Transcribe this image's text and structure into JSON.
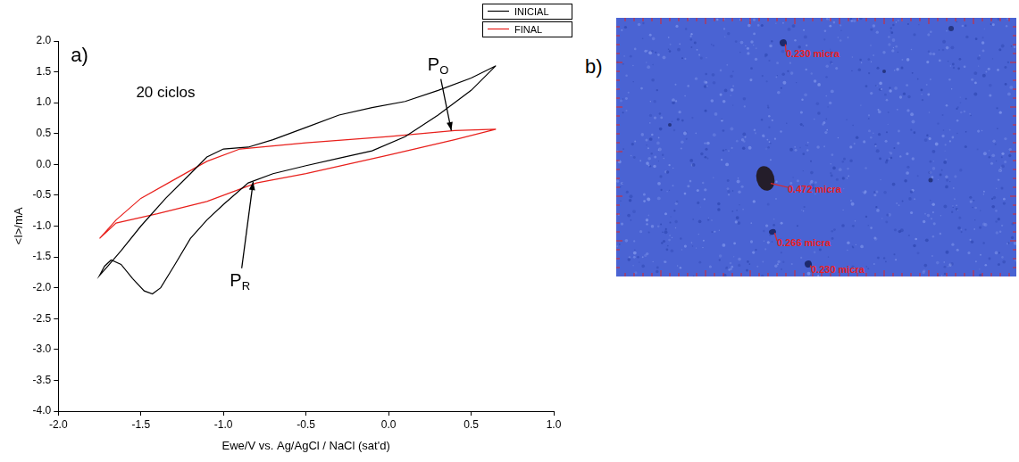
{
  "chart_data": {
    "type": "line",
    "panel_label": "a)",
    "x_label": "Ewe/V vs. Ag/AgCl / NaCl (sat'd)",
    "y_label": "<I>/mA",
    "xlim": [
      -2,
      1
    ],
    "xticks": [
      {
        "value": -2,
        "label": "-2.0"
      },
      {
        "value": -1.5,
        "label": "-1.5"
      },
      {
        "value": -1,
        "label": "-1.0"
      },
      {
        "value": -0.5,
        "label": "-0.5"
      },
      {
        "value": 0,
        "label": "0.0"
      },
      {
        "value": 0.5,
        "label": "0.5"
      },
      {
        "value": 1,
        "label": "1.0"
      }
    ],
    "ylim": [
      -4,
      2
    ],
    "yticks": [
      {
        "value": -4,
        "label": "-4.0"
      },
      {
        "value": -3.5,
        "label": "-3.5"
      },
      {
        "value": -3,
        "label": "-3.0"
      },
      {
        "value": -2.5,
        "label": "-2.5"
      },
      {
        "value": -2,
        "label": "-2.0"
      },
      {
        "value": -1.5,
        "label": "-1.5"
      },
      {
        "value": -1,
        "label": "-1.0"
      },
      {
        "value": -0.5,
        "label": "-0.5"
      },
      {
        "value": 0,
        "label": "0.0"
      },
      {
        "value": 0.5,
        "label": "0.5"
      },
      {
        "value": 1,
        "label": "1.0"
      },
      {
        "value": 1.5,
        "label": "1.5"
      },
      {
        "value": 2,
        "label": "2.0"
      }
    ],
    "grid": false,
    "legend": "upper right",
    "series": [
      {
        "name": "INICIAL",
        "color": "#000000",
        "x": [
          0.65,
          0.5,
          0.3,
          0.1,
          -0.1,
          -0.3,
          -0.5,
          -0.7,
          -0.85,
          -1.0,
          -1.1,
          -1.2,
          -1.35,
          -1.5,
          -1.62,
          -1.7,
          -1.75,
          -1.72,
          -1.68,
          -1.62,
          -1.55,
          -1.48,
          -1.43,
          -1.38,
          -1.3,
          -1.2,
          -1.1,
          -1.0,
          -0.85,
          -0.7,
          -0.5,
          -0.3,
          -0.1,
          0.1,
          0.3,
          0.5,
          0.65
        ],
        "values": [
          1.6,
          1.4,
          1.2,
          1.02,
          0.92,
          0.8,
          0.6,
          0.4,
          0.28,
          0.25,
          0.12,
          -0.15,
          -0.55,
          -1.0,
          -1.4,
          -1.65,
          -1.8,
          -1.65,
          -1.55,
          -1.62,
          -1.85,
          -2.05,
          -2.1,
          -2.0,
          -1.65,
          -1.2,
          -0.9,
          -0.65,
          -0.3,
          -0.15,
          -0.02,
          0.1,
          0.22,
          0.45,
          0.8,
          1.2,
          1.6
        ]
      },
      {
        "name": "FINAL",
        "color": "#e8201c",
        "x": [
          0.65,
          0.4,
          0.0,
          -0.5,
          -0.9,
          -1.1,
          -1.3,
          -1.5,
          -1.65,
          -1.75,
          -1.65,
          -1.4,
          -1.1,
          -0.8,
          -0.5,
          0.0,
          0.4,
          0.65
        ],
        "values": [
          0.57,
          0.55,
          0.45,
          0.35,
          0.25,
          0.05,
          -0.25,
          -0.55,
          -0.9,
          -1.2,
          -0.95,
          -0.8,
          -0.6,
          -0.3,
          -0.15,
          0.15,
          0.4,
          0.57
        ]
      }
    ],
    "annotations": [
      {
        "text": "20 ciclos",
        "x": -1.35,
        "y": 1.15
      },
      {
        "text": "P",
        "sub": "O",
        "x": 0.3,
        "y": 1.6,
        "target": [
          0.38,
          0.55
        ]
      },
      {
        "text": "P",
        "sub": "R",
        "x": -0.9,
        "y": -1.9,
        "target": [
          -0.82,
          -0.28
        ]
      }
    ]
  },
  "image_panel": {
    "label": "b)",
    "measurements": [
      "0.230 micra",
      "0.472 micra",
      "0.266 micra",
      "0.230 micra"
    ]
  }
}
